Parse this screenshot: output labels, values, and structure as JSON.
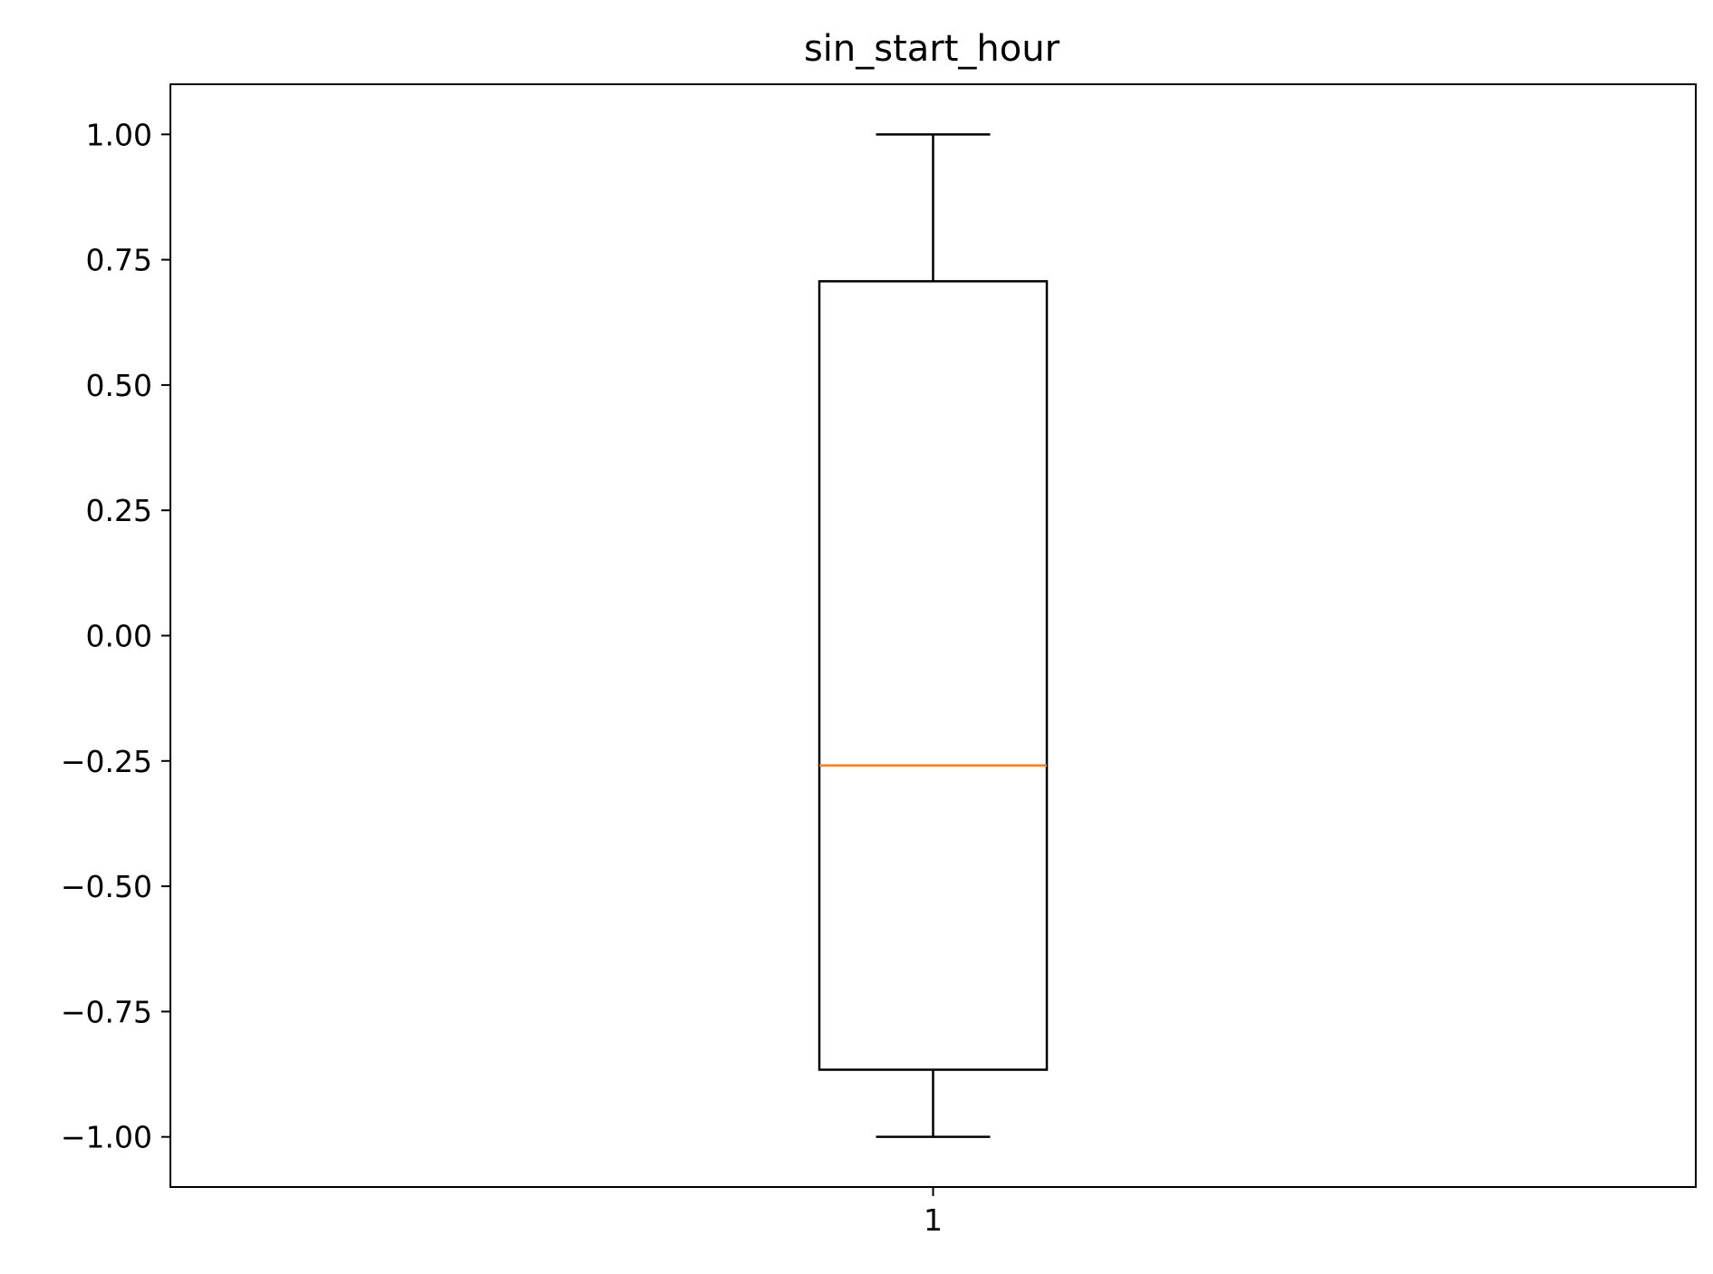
{
  "chart_data": {
    "type": "box",
    "title": "sin_start_hour",
    "xlabel": "",
    "ylabel": "",
    "categories": [
      "1"
    ],
    "ylim": [
      -1.1,
      1.1
    ],
    "yticks": [
      1.0,
      0.75,
      0.5,
      0.25,
      0.0,
      -0.25,
      -0.5,
      -0.75,
      -1.0
    ],
    "ytick_labels": [
      "1.00",
      "0.75",
      "0.50",
      "0.25",
      "0.00",
      "−0.25",
      "−0.50",
      "−0.75",
      "−1.00"
    ],
    "boxes": [
      {
        "category": "1",
        "whisker_low": -1.0,
        "q1": -0.866,
        "median": -0.259,
        "q3": 0.707,
        "whisker_high": 1.0
      }
    ],
    "grid": false,
    "colors": {
      "box": "#000000",
      "median": "#ff7f0e"
    }
  }
}
